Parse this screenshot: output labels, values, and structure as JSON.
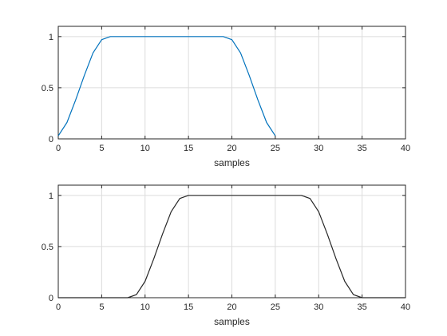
{
  "chart_data": [
    {
      "type": "line",
      "xlabel": "samples",
      "ylabel": "",
      "xlim": [
        0,
        40
      ],
      "ylim": [
        0,
        1.1
      ],
      "xticks": [
        "0",
        "5",
        "10",
        "15",
        "20",
        "25",
        "30",
        "35",
        "40"
      ],
      "yticks": [
        "0",
        "0.5",
        "1"
      ],
      "grid": true,
      "series": [
        {
          "color": "#0072bd",
          "x": [
            0,
            1,
            2,
            3,
            4,
            5,
            6,
            7,
            8,
            9,
            10,
            11,
            12,
            13,
            14,
            15,
            16,
            17,
            18,
            19,
            20,
            21,
            22,
            23,
            24,
            25
          ],
          "y": [
            0.03,
            0.16,
            0.38,
            0.62,
            0.84,
            0.97,
            1,
            1,
            1,
            1,
            1,
            1,
            1,
            1,
            1,
            1,
            1,
            1,
            1,
            1,
            0.97,
            0.84,
            0.62,
            0.38,
            0.16,
            0.03
          ]
        }
      ]
    },
    {
      "type": "line",
      "xlabel": "samples",
      "ylabel": "",
      "xlim": [
        0,
        40
      ],
      "ylim": [
        0,
        1.1
      ],
      "xticks": [
        "0",
        "5",
        "10",
        "15",
        "20",
        "25",
        "30",
        "35",
        "40"
      ],
      "yticks": [
        "0",
        "0.5",
        "1"
      ],
      "grid": true,
      "series": [
        {
          "color": "#262626",
          "x": [
            0,
            1,
            2,
            3,
            4,
            5,
            6,
            7,
            8,
            9,
            10,
            11,
            12,
            13,
            14,
            15,
            16,
            17,
            18,
            19,
            20,
            21,
            22,
            23,
            24,
            25,
            26,
            27,
            28,
            29,
            30,
            31,
            32,
            33,
            34,
            35,
            36,
            37,
            38,
            39,
            40
          ],
          "y": [
            0,
            0,
            0,
            0,
            0,
            0,
            0,
            0,
            0,
            0.03,
            0.16,
            0.38,
            0.62,
            0.84,
            0.97,
            1,
            1,
            1,
            1,
            1,
            1,
            1,
            1,
            1,
            1,
            1,
            1,
            1,
            1,
            0.97,
            0.84,
            0.62,
            0.38,
            0.16,
            0.03,
            0,
            0,
            0,
            0,
            0,
            0
          ]
        }
      ]
    }
  ]
}
